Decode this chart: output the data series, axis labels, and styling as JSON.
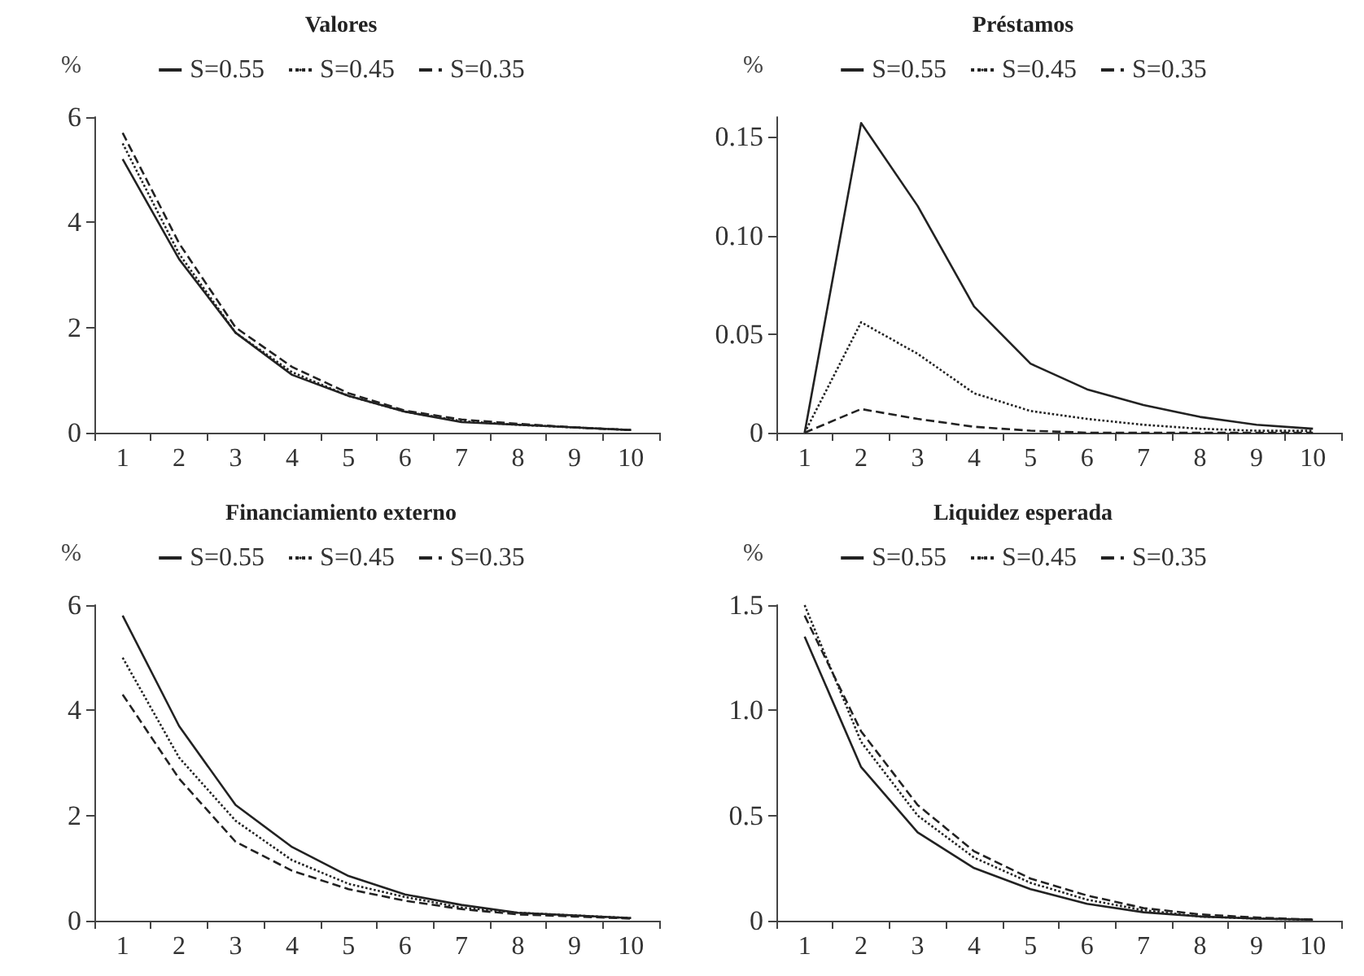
{
  "chart_data": [
    {
      "type": "line",
      "title": "Valores",
      "ylabel": "%",
      "categories": [
        "1",
        "2",
        "3",
        "4",
        "5",
        "6",
        "7",
        "8",
        "9",
        "10"
      ],
      "ylim": [
        0,
        6
      ],
      "yticks": [
        0,
        2,
        4,
        6
      ],
      "legend": "top",
      "grid": false,
      "marker": "none",
      "series": [
        {
          "name": "S=0.55",
          "color": "#222222",
          "line_style": "solid",
          "values": [
            5.2,
            3.3,
            1.9,
            1.1,
            0.7,
            0.4,
            0.2,
            0.15,
            0.1,
            0.05
          ]
        },
        {
          "name": "S=0.45",
          "color": "#222222",
          "line_style": "dotted",
          "values": [
            5.5,
            3.4,
            1.9,
            1.15,
            0.7,
            0.4,
            0.22,
            0.15,
            0.1,
            0.05
          ]
        },
        {
          "name": "S=0.35",
          "color": "#222222",
          "line_style": "dashed",
          "values": [
            5.7,
            3.6,
            2.0,
            1.25,
            0.75,
            0.42,
            0.25,
            0.17,
            0.1,
            0.05
          ]
        }
      ]
    },
    {
      "type": "line",
      "title": "Préstamos",
      "ylabel": "%",
      "categories": [
        "1",
        "2",
        "3",
        "4",
        "5",
        "6",
        "7",
        "8",
        "9",
        "10"
      ],
      "ylim": [
        0,
        0.16
      ],
      "yticks": [
        0,
        0.05,
        {
          "value": 0.1,
          "label": "0.10"
        },
        0.15
      ],
      "legend": "top",
      "grid": false,
      "marker": "none",
      "series": [
        {
          "name": "S=0.55",
          "color": "#222222",
          "line_style": "solid",
          "values": [
            0,
            0.157,
            0.115,
            0.064,
            0.035,
            0.022,
            0.014,
            0.008,
            0.004,
            0.002
          ]
        },
        {
          "name": "S=0.45",
          "color": "#222222",
          "line_style": "dotted",
          "values": [
            0,
            0.056,
            0.04,
            0.02,
            0.011,
            0.007,
            0.004,
            0.002,
            0.001,
            0.001
          ]
        },
        {
          "name": "S=0.35",
          "color": "#222222",
          "line_style": "dashed",
          "values": [
            0,
            0.012,
            0.007,
            0.003,
            0.001,
            0,
            0,
            0,
            0,
            0
          ]
        }
      ]
    },
    {
      "type": "line",
      "title": "Financiamiento externo",
      "ylabel": "%",
      "categories": [
        "1",
        "2",
        "3",
        "4",
        "5",
        "6",
        "7",
        "8",
        "9",
        "10"
      ],
      "ylim": [
        0,
        6
      ],
      "yticks": [
        0,
        2,
        4,
        6
      ],
      "legend": "top",
      "grid": false,
      "marker": "none",
      "series": [
        {
          "name": "S=0.55",
          "color": "#222222",
          "line_style": "solid",
          "values": [
            5.8,
            3.7,
            2.2,
            1.4,
            0.85,
            0.5,
            0.3,
            0.15,
            0.1,
            0.05
          ]
        },
        {
          "name": "S=0.45",
          "color": "#222222",
          "line_style": "dotted",
          "values": [
            5.0,
            3.1,
            1.9,
            1.15,
            0.7,
            0.45,
            0.25,
            0.15,
            0.1,
            0.05
          ]
        },
        {
          "name": "S=0.35",
          "color": "#222222",
          "line_style": "dashed",
          "values": [
            4.3,
            2.7,
            1.5,
            0.95,
            0.6,
            0.38,
            0.22,
            0.12,
            0.08,
            0.04
          ]
        }
      ]
    },
    {
      "type": "line",
      "title": "Liquidez esperada",
      "ylabel": "%",
      "categories": [
        "1",
        "2",
        "3",
        "4",
        "5",
        "6",
        "7",
        "8",
        "9",
        "10"
      ],
      "ylim": [
        0,
        1.5
      ],
      "yticks": [
        0,
        0.5,
        {
          "value": 1,
          "label": "1.0"
        },
        1.5
      ],
      "legend": "top",
      "grid": false,
      "marker": "none",
      "series": [
        {
          "name": "S=0.55",
          "color": "#222222",
          "line_style": "solid",
          "values": [
            1.35,
            0.73,
            0.42,
            0.25,
            0.15,
            0.08,
            0.04,
            0.02,
            0.01,
            0.005
          ]
        },
        {
          "name": "S=0.45",
          "color": "#222222",
          "line_style": "dotted",
          "values": [
            1.5,
            0.85,
            0.5,
            0.3,
            0.18,
            0.1,
            0.05,
            0.02,
            0.01,
            0.005
          ]
        },
        {
          "name": "S=0.35",
          "color": "#222222",
          "line_style": "dashed",
          "values": [
            1.45,
            0.9,
            0.55,
            0.33,
            0.2,
            0.12,
            0.06,
            0.03,
            0.015,
            0.005
          ]
        }
      ]
    }
  ]
}
